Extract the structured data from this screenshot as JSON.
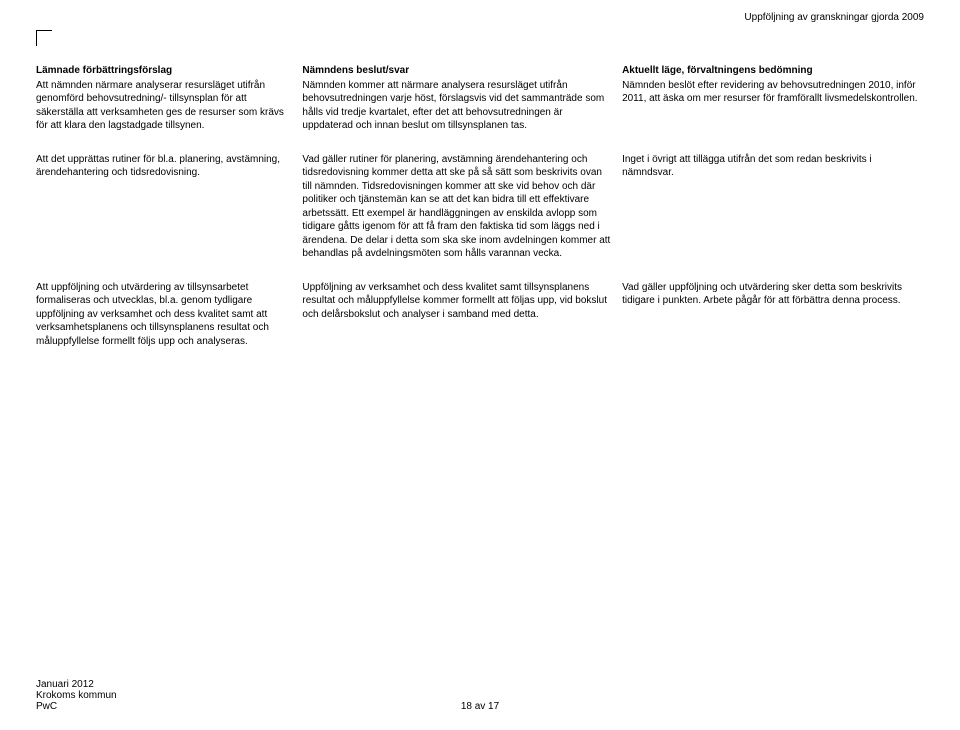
{
  "header_right": "Uppföljning av granskningar gjorda 2009",
  "table": {
    "rows": [
      {
        "c1_head": "Lämnade förbättringsförslag",
        "c1_body": "Att nämnden närmare analyserar resursläget utifrån genomförd behovsutredning/- tillsynsplan för att säkerställa att verksamheten ges de resurser som krävs för att klara den lagstadgade tillsynen.",
        "c2_head": "Nämndens beslut/svar",
        "c2_body": "Nämnden kommer att närmare analysera resursläget utifrån behovsutredningen varje höst, förslagsvis vid det sammanträde som hålls vid tredje kvartalet, efter det att behovsutredningen är uppdaterad och innan beslut om tillsynsplanen tas.",
        "c3_head": "Aktuellt läge, förvaltningens bedömning",
        "c3_body": "Nämnden beslöt efter revidering av behovsutredningen 2010, inför 2011, att äska om mer resurser för framförallt livsmedelskontrollen."
      },
      {
        "c1_body": "Att det upprättas rutiner för bl.a. planering, avstämning, ärendehantering och tidsredovisning.",
        "c2_body": "Vad gäller rutiner för planering, avstämning ärendehantering och tidsredovisning kommer detta att ske på så sätt som beskrivits ovan till nämnden. Tidsredovisningen kommer att ske vid behov och där politiker och tjänstemän kan se att det kan bidra till ett effektivare arbetssätt. Ett exempel är handläggningen av enskilda avlopp som tidigare gåtts igenom för att få fram den faktiska tid som läggs ned i ärendena. De delar i detta som ska ske inom avdelningen kommer att behandlas på avdelningsmöten som hålls varannan vecka.",
        "c3_body": "Inget i övrigt att tillägga utifrån det som redan beskrivits i nämndsvar."
      },
      {
        "c1_body": "Att uppföljning och utvärdering av tillsynsarbetet formaliseras och utvecklas, bl.a. genom tydligare uppföljning av verksamhet och dess kvalitet samt att verksamhetsplanens och tillsynsplanens resultat och måluppfyllelse formellt följs upp och analyseras.",
        "c2_body": "Uppföljning av verksamhet och dess kvalitet samt tillsynsplanens resultat och måluppfyllelse kommer formellt att följas upp, vid bokslut och delårsbokslut och analyser i samband med detta.",
        "c3_body": "Vad gäller uppföljning och utvärdering sker detta som beskrivits tidigare i punkten. Arbete pågår för att förbättra denna process."
      }
    ]
  },
  "footer": {
    "line1": "Januari 2012",
    "line2": "Krokoms kommun",
    "line3": "PwC",
    "page_num": "18 av 17"
  }
}
